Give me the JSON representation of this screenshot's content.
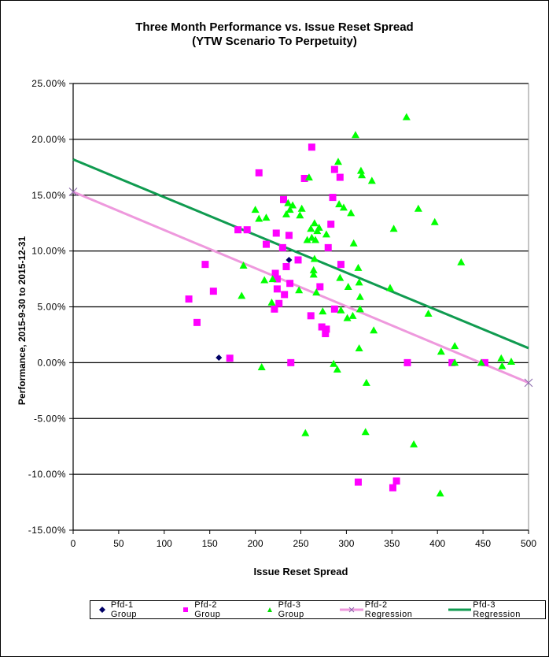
{
  "chart_data": {
    "type": "scatter",
    "title": "Three Month Performance vs. Issue Reset Spread",
    "subtitle": "(YTW Scenario To Perpetuity)",
    "xlabel": "Issue Reset Spread",
    "ylabel": "Performance, 2015-9-30 to 2015-12-31",
    "xlim": [
      0,
      500
    ],
    "ylim": [
      -15,
      25
    ],
    "xticks": [
      0,
      50,
      100,
      150,
      200,
      250,
      300,
      350,
      400,
      450,
      500
    ],
    "yticks": [
      -15,
      -10,
      -5,
      0,
      5,
      10,
      15,
      20,
      25
    ],
    "ytick_labels": [
      "-15.00%",
      "-10.00%",
      "-5.00%",
      "0.00%",
      "5.00%",
      "10.00%",
      "15.00%",
      "20.00%",
      "25.00%"
    ],
    "grid": "horizontal",
    "legend_position": "bottom",
    "series": [
      {
        "name": "Pfd-1 Group",
        "marker": "diamond",
        "color": "#000066",
        "points": [
          [
            160,
            0.45
          ],
          [
            237,
            9.2
          ]
        ]
      },
      {
        "name": "Pfd-2 Group",
        "marker": "square",
        "color": "#ff00ff",
        "points": [
          [
            127,
            5.7
          ],
          [
            136,
            3.6
          ],
          [
            145,
            8.8
          ],
          [
            154,
            6.4
          ],
          [
            172,
            0.4
          ],
          [
            181,
            11.9
          ],
          [
            191,
            11.9
          ],
          [
            204,
            17.0
          ],
          [
            212,
            10.6
          ],
          [
            221,
            4.8
          ],
          [
            222,
            8.0
          ],
          [
            223,
            11.6
          ],
          [
            224,
            7.5
          ],
          [
            224,
            6.6
          ],
          [
            226,
            5.3
          ],
          [
            230,
            10.3
          ],
          [
            231,
            14.6
          ],
          [
            232,
            6.1
          ],
          [
            234,
            8.6
          ],
          [
            237,
            11.4
          ],
          [
            238,
            7.1
          ],
          [
            239,
            0.0
          ],
          [
            247,
            9.2
          ],
          [
            254,
            16.5
          ],
          [
            261,
            4.2
          ],
          [
            262,
            19.3
          ],
          [
            271,
            6.8
          ],
          [
            273,
            3.2
          ],
          [
            277,
            2.6
          ],
          [
            278,
            3.0
          ],
          [
            280,
            10.3
          ],
          [
            283,
            12.4
          ],
          [
            285,
            14.8
          ],
          [
            287,
            17.3
          ],
          [
            287,
            4.8
          ],
          [
            293,
            16.6
          ],
          [
            294,
            8.8
          ],
          [
            313,
            -10.7
          ],
          [
            351,
            -11.2
          ],
          [
            355,
            -10.6
          ],
          [
            367,
            0.0
          ],
          [
            416,
            0.0
          ],
          [
            452,
            0.0
          ]
        ]
      },
      {
        "name": "Pfd-3 Group",
        "marker": "triangle",
        "color": "#00ff00",
        "points": [
          [
            185,
            6.0
          ],
          [
            187,
            8.7
          ],
          [
            200,
            13.7
          ],
          [
            204,
            12.9
          ],
          [
            207,
            -0.4
          ],
          [
            210,
            7.4
          ],
          [
            212,
            13.0
          ],
          [
            218,
            5.4
          ],
          [
            219,
            7.5
          ],
          [
            234,
            13.3
          ],
          [
            236,
            14.3
          ],
          [
            238,
            13.7
          ],
          [
            241,
            14.1
          ],
          [
            248,
            6.5
          ],
          [
            249,
            13.2
          ],
          [
            251,
            13.8
          ],
          [
            255,
            -6.3
          ],
          [
            257,
            11.0
          ],
          [
            259,
            16.6
          ],
          [
            261,
            12.0
          ],
          [
            262,
            11.2
          ],
          [
            264,
            8.3
          ],
          [
            264,
            7.9
          ],
          [
            265,
            9.3
          ],
          [
            265,
            12.5
          ],
          [
            266,
            11.0
          ],
          [
            267,
            6.3
          ],
          [
            268,
            11.8
          ],
          [
            270,
            12.1
          ],
          [
            274,
            4.6
          ],
          [
            278,
            11.5
          ],
          [
            286,
            -0.1
          ],
          [
            290,
            -0.6
          ],
          [
            291,
            18.0
          ],
          [
            292,
            14.2
          ],
          [
            293,
            7.6
          ],
          [
            294,
            4.7
          ],
          [
            297,
            13.9
          ],
          [
            301,
            4.0
          ],
          [
            302,
            6.8
          ],
          [
            305,
            13.4
          ],
          [
            307,
            4.2
          ],
          [
            308,
            10.7
          ],
          [
            310,
            20.4
          ],
          [
            313,
            8.5
          ],
          [
            314,
            1.3
          ],
          [
            314,
            7.2
          ],
          [
            315,
            5.9
          ],
          [
            315,
            4.8
          ],
          [
            316,
            17.2
          ],
          [
            317,
            16.8
          ],
          [
            321,
            -6.2
          ],
          [
            322,
            -1.8
          ],
          [
            328,
            16.3
          ],
          [
            330,
            2.9
          ],
          [
            348,
            6.7
          ],
          [
            352,
            12.0
          ],
          [
            366,
            22.0
          ],
          [
            374,
            -7.3
          ],
          [
            379,
            13.8
          ],
          [
            390,
            4.4
          ],
          [
            397,
            12.6
          ],
          [
            403,
            -11.7
          ],
          [
            404,
            1.0
          ],
          [
            419,
            1.5
          ],
          [
            419,
            0.0
          ],
          [
            426,
            9.0
          ],
          [
            448,
            0.0
          ],
          [
            470,
            0.4
          ],
          [
            471,
            -0.3
          ],
          [
            481,
            0.1
          ]
        ]
      },
      {
        "name": "Pfd-2 Regression",
        "marker": "x-line",
        "color": "#ee99dd",
        "points": [
          [
            0,
            15.3
          ],
          [
            500,
            -1.8
          ]
        ]
      },
      {
        "name": "Pfd-3 Regression",
        "marker": "line",
        "color": "#109b50",
        "points": [
          [
            0,
            18.2
          ],
          [
            500,
            1.3
          ]
        ]
      }
    ]
  },
  "legend": {
    "items": [
      "Pfd-1 Group",
      "Pfd-2 Group",
      "Pfd-3 Group",
      "Pfd-2 Regression",
      "Pfd-3 Regression"
    ]
  }
}
